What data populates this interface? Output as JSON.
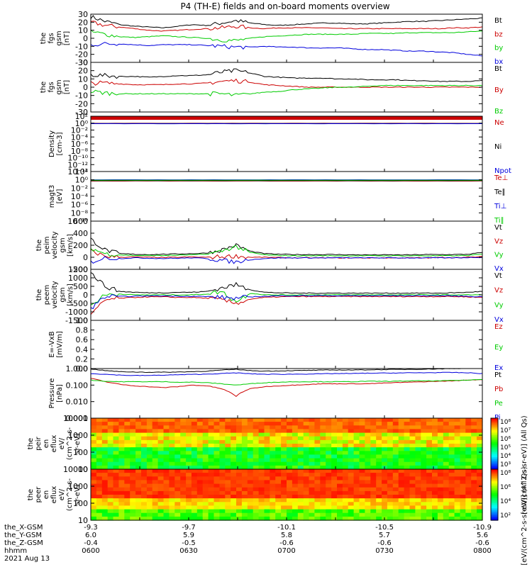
{
  "title": "P4 (TH-E) fields and on-board moments overview",
  "colors": {
    "black": "#000000",
    "red": "#cc0000",
    "green": "#00cc00",
    "blue": "#0000dd",
    "frame": "#000000"
  },
  "chart_data": [
    {
      "type": "line",
      "id": "fgs_gsm",
      "ylabel": [
        "the",
        "fgs",
        "gsm",
        "[nT]"
      ],
      "yticks": [
        "30",
        "20",
        "10",
        "0",
        "-10",
        "-20",
        "-30"
      ],
      "ylim": [
        -30,
        30
      ],
      "legend": [
        "Bt",
        "bz",
        "by",
        "bx"
      ],
      "series": [
        {
          "name": "Bt",
          "color": "black",
          "values": [
            27,
            21,
            17,
            15,
            14,
            13,
            15,
            17,
            16,
            19,
            22,
            19,
            17,
            16,
            17,
            18,
            19,
            19,
            18,
            18,
            19,
            20,
            21,
            21,
            22,
            23,
            24,
            25
          ]
        },
        {
          "name": "bz",
          "color": "red",
          "values": [
            20,
            16,
            14,
            12,
            10,
            9,
            10,
            11,
            12,
            13,
            15,
            13,
            12,
            13,
            13,
            13,
            13,
            12,
            12,
            12,
            12,
            12,
            12,
            12,
            12,
            13,
            13,
            14
          ]
        },
        {
          "name": "by",
          "color": "green",
          "values": [
            8,
            5,
            2,
            1,
            2,
            3,
            2,
            1,
            0,
            -2,
            -3,
            0,
            2,
            3,
            4,
            5,
            5,
            5,
            5,
            6,
            6,
            6,
            7,
            7,
            7,
            7,
            8,
            9
          ]
        },
        {
          "name": "bx",
          "color": "blue",
          "values": [
            -8,
            -7,
            -7,
            -8,
            -9,
            -8,
            -8,
            -8,
            -9,
            -10,
            -11,
            -11,
            -10,
            -11,
            -11,
            -12,
            -12,
            -12,
            -13,
            -14,
            -14,
            -15,
            -16,
            -16,
            -17,
            -18,
            -20,
            -22
          ]
        }
      ]
    },
    {
      "type": "line",
      "id": "fgs_gsm_2",
      "ylabel": [
        "the",
        "fgs",
        "gsm",
        "[nT]"
      ],
      "yticks": [
        "30",
        "20",
        "10",
        "0",
        "-10",
        "-20",
        "-30"
      ],
      "ylim": [
        -30,
        30
      ],
      "legend": [
        "Bt",
        "By",
        "Bz"
      ],
      "series": [
        {
          "name": "Bt",
          "color": "black",
          "values": [
            15,
            14,
            13,
            13,
            12,
            13,
            14,
            14,
            15,
            18,
            20,
            17,
            13,
            12,
            11,
            11,
            11,
            10,
            10,
            9,
            9,
            9,
            8,
            8,
            7,
            7,
            7,
            8
          ]
        },
        {
          "name": "By",
          "color": "red",
          "values": [
            5,
            5,
            4,
            3,
            3,
            3,
            4,
            4,
            5,
            7,
            8,
            6,
            3,
            2,
            1,
            0,
            0,
            0,
            0,
            0,
            0,
            0,
            0,
            0,
            0,
            0,
            0,
            0
          ]
        },
        {
          "name": "Bz",
          "color": "green",
          "values": [
            -5,
            -7,
            -8,
            -8,
            -8,
            -8,
            -8,
            -8,
            -8,
            -8,
            -10,
            -8,
            -6,
            -5,
            -3,
            -2,
            -1,
            0,
            0,
            1,
            2,
            2,
            2,
            2,
            2,
            2,
            2,
            2
          ]
        }
      ]
    },
    {
      "type": "line",
      "id": "density",
      "ylabel": [
        "Density",
        "[cm-3]"
      ],
      "yticks": [
        "10²",
        "10⁰",
        "10⁻²",
        "10⁻⁴",
        "10⁻⁶",
        "10⁻⁸",
        "10⁻¹⁰",
        "10⁻¹²",
        "10⁻¹⁴"
      ],
      "ylog": [
        -14,
        2
      ],
      "legend": [
        "Ne",
        "Ni",
        "Npot"
      ],
      "series": [
        {
          "name": "Ne",
          "color": "red",
          "values": [
            0.9,
            0.9,
            0.9,
            0.9,
            0.9,
            0.9,
            0.9,
            0.9
          ]
        },
        {
          "name": "Ni",
          "color": "black",
          "values": [
            0.8,
            0.8,
            0.8,
            0.8,
            0.8,
            0.8,
            0.8,
            0.8
          ]
        },
        {
          "name": "Npot",
          "color": "blue",
          "values": [
            0.7,
            0.7,
            0.7,
            0.7,
            0.7,
            0.7,
            0.7,
            0.7
          ]
        }
      ]
    },
    {
      "type": "line",
      "id": "temperature",
      "ylabel": [
        "magt3",
        "[eV]"
      ],
      "yticks": [
        "10²",
        "10⁰",
        "10⁻²",
        "10⁻⁴",
        "10⁻⁶",
        "10⁻⁸",
        "10⁻¹⁰"
      ],
      "ylog": [
        -10,
        2
      ],
      "legend": [
        "Te⊥",
        "Te∥",
        "Ti⊥",
        "Ti∥"
      ],
      "series": [
        {
          "name": "Te⊥",
          "color": "red",
          "values": [
            0.5,
            0.5,
            0.5,
            0.5,
            0.5,
            0.5
          ]
        },
        {
          "name": "Te∥",
          "color": "black",
          "values": [
            0.6,
            0.6,
            0.6,
            0.6,
            0.6,
            0.6
          ]
        },
        {
          "name": "Ti⊥",
          "color": "blue",
          "values": [
            1.0,
            1.0,
            1.0,
            1.0,
            1.0,
            1.0
          ]
        },
        {
          "name": "Ti∥",
          "color": "green",
          "values": [
            0.8,
            0.8,
            0.8,
            0.8,
            0.8,
            0.8
          ]
        }
      ]
    },
    {
      "type": "line",
      "id": "peim_velocity",
      "ylabel": [
        "the",
        "peim",
        "velocity",
        "gsm",
        "[km/s]"
      ],
      "yticks": [
        "600",
        "400",
        "200",
        "0",
        "-200"
      ],
      "ylim": [
        -200,
        600
      ],
      "legend": [
        "Vt",
        "Vz",
        "Vy",
        "Vx"
      ],
      "series": [
        {
          "name": "Vt",
          "color": "black",
          "values": [
            300,
            120,
            60,
            50,
            45,
            50,
            55,
            60,
            70,
            120,
            200,
            100,
            60,
            50,
            45,
            45,
            45,
            45,
            40,
            40,
            40,
            40,
            40,
            45,
            45,
            45,
            50,
            80
          ]
        },
        {
          "name": "Vz",
          "color": "red",
          "values": [
            100,
            20,
            0,
            5,
            0,
            -5,
            0,
            5,
            0,
            10,
            20,
            0,
            0,
            -5,
            -10,
            -10,
            -10,
            -10,
            -10,
            -10,
            -10,
            -10,
            -10,
            -10,
            -5,
            -5,
            0,
            10
          ]
        },
        {
          "name": "Vy",
          "color": "green",
          "values": [
            150,
            60,
            40,
            30,
            30,
            30,
            35,
            40,
            50,
            100,
            180,
            80,
            40,
            30,
            25,
            25,
            25,
            25,
            25,
            25,
            25,
            25,
            25,
            25,
            25,
            25,
            30,
            50
          ]
        },
        {
          "name": "Vx",
          "color": "blue",
          "values": [
            -80,
            -10,
            -20,
            -10,
            -15,
            -20,
            -15,
            -10,
            -20,
            -50,
            -80,
            -40,
            -20,
            -10,
            -10,
            -10,
            -10,
            -10,
            -10,
            -10,
            -10,
            -10,
            -10,
            -10,
            -10,
            -10,
            -5,
            0
          ]
        }
      ]
    },
    {
      "type": "line",
      "id": "peem_velocity",
      "ylabel": [
        "the",
        "peem",
        "velocity",
        "gsm",
        "[km/s]"
      ],
      "yticks": [
        "1500",
        "1000",
        "500",
        "0",
        "-500",
        "-1000",
        "-1500"
      ],
      "ylim": [
        -1500,
        1500
      ],
      "legend": [
        "Vt",
        "Vz",
        "Vy",
        "Vx"
      ],
      "series": [
        {
          "name": "Vt",
          "color": "black",
          "values": [
            1300,
            500,
            200,
            150,
            120,
            120,
            150,
            150,
            200,
            400,
            600,
            300,
            150,
            120,
            100,
            100,
            100,
            100,
            100,
            100,
            100,
            100,
            100,
            100,
            100,
            120,
            150,
            200
          ]
        },
        {
          "name": "Vz",
          "color": "red",
          "values": [
            -1200,
            -300,
            -200,
            -150,
            -120,
            -120,
            -150,
            -150,
            -200,
            -300,
            -500,
            -250,
            -150,
            -120,
            -100,
            -100,
            -100,
            -100,
            -100,
            -100,
            -100,
            -100,
            -100,
            -100,
            -100,
            -100,
            -120,
            -150
          ]
        },
        {
          "name": "Vy",
          "color": "green",
          "values": [
            -600,
            0,
            50,
            0,
            0,
            0,
            0,
            0,
            50,
            200,
            -400,
            100,
            0,
            0,
            0,
            0,
            0,
            0,
            0,
            0,
            0,
            0,
            0,
            0,
            0,
            0,
            0,
            0
          ]
        },
        {
          "name": "Vx",
          "color": "blue",
          "values": [
            -800,
            -100,
            -100,
            -80,
            -60,
            -60,
            -80,
            -80,
            -100,
            -150,
            -200,
            -120,
            -80,
            -60,
            -50,
            -50,
            -50,
            -50,
            -50,
            -50,
            -50,
            -50,
            -50,
            -50,
            -50,
            -60,
            -80,
            -120
          ]
        }
      ]
    },
    {
      "type": "line",
      "id": "efield",
      "ylabel": [
        "E=-VxB",
        "[mV/m]"
      ],
      "yticks": [
        "1.0",
        "0.8",
        "0.6",
        "0.4",
        "0.2",
        "0.0"
      ],
      "ylim": [
        0,
        1
      ],
      "legend": [
        "Ez",
        "Ey",
        "Ex"
      ],
      "series": []
    },
    {
      "type": "line",
      "id": "pressure",
      "ylabel": [
        "Pressure",
        "[nPa]"
      ],
      "yticks": [
        "1.000",
        "0.100",
        "0.010",
        "0.001"
      ],
      "ylog": [
        -3,
        0
      ],
      "legend": [
        "Pt",
        "Pb",
        "Pe",
        "Pi"
      ],
      "series": [
        {
          "name": "Pt",
          "color": "black",
          "values": [
            0.95,
            0.75,
            0.65,
            0.62,
            0.6,
            0.6,
            0.62,
            0.65,
            0.7,
            0.8,
            0.9,
            0.75,
            0.7,
            0.72,
            0.75,
            0.78,
            0.8,
            0.82,
            0.82,
            0.84,
            0.86,
            0.88,
            0.9,
            0.92,
            0.95,
            1.0,
            1.05,
            1.1
          ]
        },
        {
          "name": "Pb",
          "color": "red",
          "values": [
            0.25,
            0.16,
            0.11,
            0.09,
            0.08,
            0.07,
            0.08,
            0.1,
            0.09,
            0.06,
            0.02,
            0.06,
            0.08,
            0.09,
            0.1,
            0.11,
            0.12,
            0.12,
            0.12,
            0.12,
            0.13,
            0.14,
            0.15,
            0.16,
            0.17,
            0.18,
            0.2,
            0.22
          ]
        },
        {
          "name": "Pe",
          "color": "green",
          "values": [
            0.2,
            0.17,
            0.16,
            0.16,
            0.16,
            0.16,
            0.15,
            0.15,
            0.14,
            0.12,
            0.1,
            0.12,
            0.14,
            0.15,
            0.16,
            0.16,
            0.16,
            0.16,
            0.16,
            0.17,
            0.17,
            0.17,
            0.18,
            0.18,
            0.18,
            0.19,
            0.2,
            0.22
          ]
        },
        {
          "name": "Pi",
          "color": "blue",
          "values": [
            0.5,
            0.45,
            0.4,
            0.38,
            0.38,
            0.4,
            0.42,
            0.44,
            0.46,
            0.5,
            0.55,
            0.48,
            0.45,
            0.45,
            0.46,
            0.47,
            0.48,
            0.5,
            0.5,
            0.52,
            0.53,
            0.54,
            0.55,
            0.56,
            0.57,
            0.58,
            0.55,
            0.5
          ]
        }
      ]
    },
    {
      "type": "heatmap",
      "id": "peir_en_eflux",
      "ylabel": [
        "the",
        "peir",
        "en",
        "eflux",
        "eV/",
        "(cm^2-s-",
        "sr-eV)"
      ],
      "yticks": [
        "10000",
        "1000",
        "100",
        "10"
      ],
      "colorbar_label": "[eV/(cm^2-s-sr-eV)] (All Qs)",
      "colorbar_ticks": [
        "10⁸",
        "10⁷",
        "10⁶",
        "10⁵",
        "10⁴",
        "10³"
      ]
    },
    {
      "type": "heatmap",
      "id": "peer_en_eflux",
      "ylabel": [
        "the",
        "peer",
        "en",
        "eflux",
        "eV/",
        "(cm^2-s-",
        "sr-eV)"
      ],
      "yticks": [
        "10000",
        "1000",
        "100",
        "10"
      ],
      "colorbar_label": "[eV/(cm^2-s-sr-eV)] (All Qs)",
      "colorbar_ticks": [
        "10⁸",
        "10⁶",
        "10⁴",
        "10²"
      ]
    }
  ],
  "xaxis": {
    "row_labels": [
      "the_X-GSM",
      "the_Y-GSM",
      "the_Z-GSM",
      "hhmm",
      "2021 Aug 13"
    ],
    "ticks": [
      {
        "x": [
          "-9.3",
          "6.0",
          "-0.4",
          "0600"
        ]
      },
      {
        "x": [
          "-9.7",
          "5.9",
          "-0.5",
          "0630"
        ]
      },
      {
        "x": [
          "-10.1",
          "5.8",
          "-0.6",
          "0700"
        ]
      },
      {
        "x": [
          "-10.5",
          "5.7",
          "-0.6",
          "0730"
        ]
      },
      {
        "x": [
          "-10.9",
          "5.6",
          "-0.6",
          "0800"
        ]
      }
    ]
  }
}
